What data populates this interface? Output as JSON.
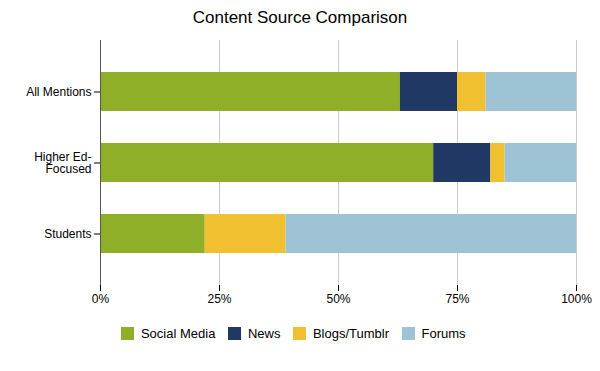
{
  "chart_data": {
    "type": "bar",
    "title": "Content Source Comparison",
    "orientation": "horizontal",
    "stacked": true,
    "categories": [
      "Students",
      "Higher Ed-\nFocused",
      "All Mentions"
    ],
    "series": [
      {
        "name": "Social Media",
        "color": "#8faf29",
        "values": [
          22,
          70,
          63
        ]
      },
      {
        "name": "News",
        "color": "#1f3864",
        "values": [
          0,
          12,
          12
        ]
      },
      {
        "name": "Blogs/Tumblr",
        "color": "#f0c030",
        "values": [
          17,
          3,
          6
        ]
      },
      {
        "name": "Forums",
        "color": "#9dc3d4",
        "values": [
          61,
          15,
          19
        ]
      }
    ],
    "xlim": [
      0,
      100
    ],
    "xticks": [
      {
        "value": 0,
        "label": "0%"
      },
      {
        "value": 25,
        "label": "25%"
      },
      {
        "value": 50,
        "label": "50%"
      },
      {
        "value": 75,
        "label": "75%"
      },
      {
        "value": 100,
        "label": "100%"
      }
    ],
    "grid": true,
    "legend": "bottom"
  }
}
